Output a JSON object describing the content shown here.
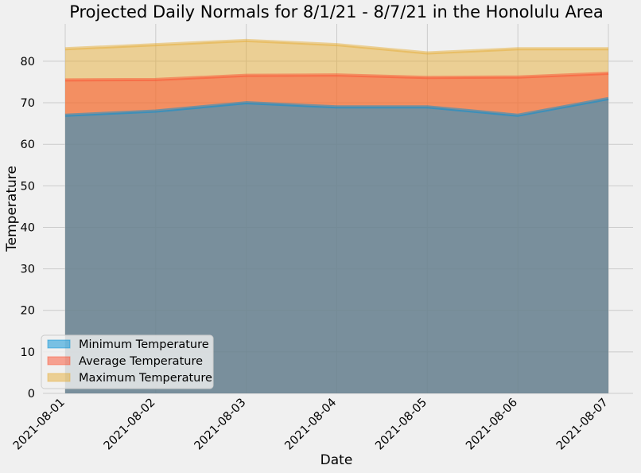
{
  "colors": {
    "background": "#f0f0f0",
    "min": "#008fd5",
    "avg": "#fc4f30",
    "max": "#e5ae38",
    "grid": "#cbcbcb"
  },
  "chart_data": {
    "type": "area",
    "title": "Projected Daily Normals for 8/1/21 - 8/7/21 in the Honolulu Area",
    "xlabel": "Date",
    "ylabel": "Temperature",
    "categories": [
      "2021-08-01",
      "2021-08-02",
      "2021-08-03",
      "2021-08-04",
      "2021-08-05",
      "2021-08-06",
      "2021-08-07"
    ],
    "series": [
      {
        "name": "Minimum Temperature",
        "color": "#008fd5",
        "values": [
          67,
          68,
          70,
          69,
          69,
          67,
          71
        ]
      },
      {
        "name": "Average Temperature",
        "color": "#fc4f30",
        "values": [
          75.5,
          75.6,
          76.6,
          76.7,
          76.1,
          76.2,
          77.1
        ]
      },
      {
        "name": "Maximum Temperature",
        "color": "#e5ae38",
        "values": [
          83,
          84,
          85,
          84,
          82,
          83,
          83
        ]
      }
    ],
    "ylim": [
      0,
      89
    ],
    "yticks": [
      0,
      10,
      20,
      30,
      40,
      50,
      60,
      70,
      80
    ],
    "grid": true,
    "stacked": false,
    "legend_position": "lower-left"
  }
}
